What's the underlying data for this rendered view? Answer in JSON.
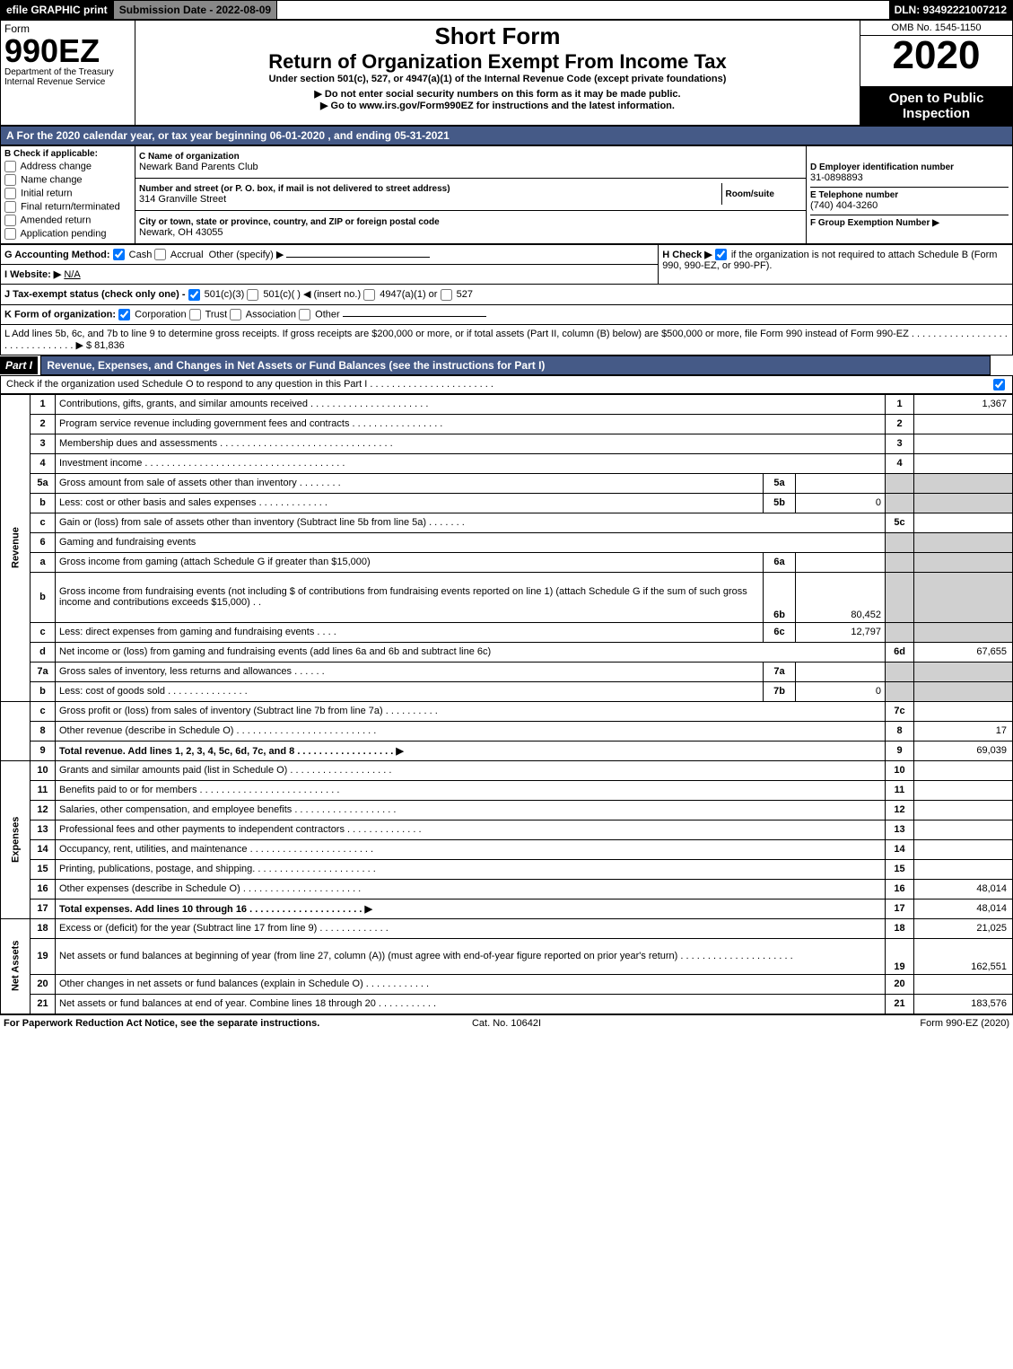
{
  "topbar": {
    "efile": "efile GRAPHIC print",
    "submission": "Submission Date - 2022-08-09",
    "dln": "DLN: 93492221007212"
  },
  "header": {
    "form_word": "Form",
    "form_no": "990EZ",
    "dept": "Department of the Treasury",
    "irs": "Internal Revenue Service",
    "short": "Short Form",
    "title": "Return of Organization Exempt From Income Tax",
    "under": "Under section 501(c), 527, or 4947(a)(1) of the Internal Revenue Code (except private foundations)",
    "warn1": "▶ Do not enter social security numbers on this form as it may be made public.",
    "warn2": "▶ Go to www.irs.gov/Form990EZ for instructions and the latest information.",
    "omb": "OMB No. 1545-1150",
    "year": "2020",
    "open": "Open to Public Inspection"
  },
  "lineA": "A For the 2020 calendar year, or tax year beginning 06-01-2020 , and ending 05-31-2021",
  "boxB": {
    "title": "B Check if applicable:",
    "opts": [
      "Address change",
      "Name change",
      "Initial return",
      "Final return/terminated",
      "Amended return",
      "Application pending"
    ]
  },
  "boxC": {
    "lbl": "C Name of organization",
    "name": "Newark Band Parents Club",
    "street_lbl": "Number and street (or P. O. box, if mail is not delivered to street address)",
    "street": "314 Granville Street",
    "room_lbl": "Room/suite",
    "city_lbl": "City or town, state or province, country, and ZIP or foreign postal code",
    "city": "Newark, OH  43055"
  },
  "boxD": {
    "lbl": "D Employer identification number",
    "val": "31-0898893"
  },
  "boxE": {
    "lbl": "E Telephone number",
    "val": "(740) 404-3260"
  },
  "boxF": {
    "lbl": "F Group Exemption Number  ▶"
  },
  "boxG": {
    "lbl": "G Accounting Method:",
    "cash": "Cash",
    "accrual": "Accrual",
    "other": "Other (specify) ▶"
  },
  "boxH": {
    "lbl": "H Check ▶",
    "txt": "if the organization is not required to attach Schedule B (Form 990, 990-EZ, or 990-PF)."
  },
  "boxI": {
    "lbl": "I Website: ▶",
    "val": "N/A"
  },
  "boxJ": {
    "lbl": "J Tax-exempt status (check only one) -",
    "o1": "501(c)(3)",
    "o2": "501(c)(  ) ◀ (insert no.)",
    "o3": "4947(a)(1) or",
    "o4": "527"
  },
  "boxK": {
    "lbl": "K Form of organization:",
    "o1": "Corporation",
    "o2": "Trust",
    "o3": "Association",
    "o4": "Other"
  },
  "lineL": {
    "txt": "L Add lines 5b, 6c, and 7b to line 9 to determine gross receipts. If gross receipts are $200,000 or more, or if total assets (Part II, column (B) below) are $500,000 or more, file Form 990 instead of Form 990-EZ . . . . . . . . . . . . . . . . . . . . . . . . . . . . . . . ▶",
    "val": "$ 81,836"
  },
  "part1": {
    "bar": "Part I",
    "desc": "Revenue, Expenses, and Changes in Net Assets or Fund Balances (see the instructions for Part I)",
    "checkline": "Check if the organization used Schedule O to respond to any question in this Part I . . . . . . . . . . . . . . . . . . . . . . ."
  },
  "revenue_label": "Revenue",
  "expenses_label": "Expenses",
  "netassets_label": "Net Assets",
  "rows": {
    "r1": {
      "n": "1",
      "t": "Contributions, gifts, grants, and similar amounts received . . . . . . . . . . . . . . . . . . . . . .",
      "rn": "1",
      "v": "1,367"
    },
    "r2": {
      "n": "2",
      "t": "Program service revenue including government fees and contracts . . . . . . . . . . . . . . . . .",
      "rn": "2",
      "v": ""
    },
    "r3": {
      "n": "3",
      "t": "Membership dues and assessments . . . . . . . . . . . . . . . . . . . . . . . . . . . . . . . .",
      "rn": "3",
      "v": ""
    },
    "r4": {
      "n": "4",
      "t": "Investment income . . . . . . . . . . . . . . . . . . . . . . . . . . . . . . . . . . . . .",
      "rn": "4",
      "v": ""
    },
    "r5a": {
      "n": "5a",
      "t": "Gross amount from sale of assets other than inventory . . . . . . . .",
      "sn": "5a",
      "sv": ""
    },
    "r5b": {
      "n": "b",
      "t": "Less: cost or other basis and sales expenses . . . . . . . . . . . . .",
      "sn": "5b",
      "sv": "0"
    },
    "r5c": {
      "n": "c",
      "t": "Gain or (loss) from sale of assets other than inventory (Subtract line 5b from line 5a) . . . . . . .",
      "rn": "5c",
      "v": ""
    },
    "r6": {
      "n": "6",
      "t": "Gaming and fundraising events"
    },
    "r6a": {
      "n": "a",
      "t": "Gross income from gaming (attach Schedule G if greater than $15,000)",
      "sn": "6a",
      "sv": ""
    },
    "r6b": {
      "n": "b",
      "t": "Gross income from fundraising events (not including $                    of contributions from fundraising events reported on line 1) (attach Schedule G if the sum of such gross income and contributions exceeds $15,000)   . .",
      "sn": "6b",
      "sv": "80,452"
    },
    "r6c": {
      "n": "c",
      "t": "Less: direct expenses from gaming and fundraising events   . . . .",
      "sn": "6c",
      "sv": "12,797"
    },
    "r6d": {
      "n": "d",
      "t": "Net income or (loss) from gaming and fundraising events (add lines 6a and 6b and subtract line 6c)",
      "rn": "6d",
      "v": "67,655"
    },
    "r7a": {
      "n": "7a",
      "t": "Gross sales of inventory, less returns and allowances . . . . . .",
      "sn": "7a",
      "sv": ""
    },
    "r7b": {
      "n": "b",
      "t": "Less: cost of goods sold     . . . . . . . . . . . . . . .",
      "sn": "7b",
      "sv": "0"
    },
    "r7c": {
      "n": "c",
      "t": "Gross profit or (loss) from sales of inventory (Subtract line 7b from line 7a) . . . . . . . . . .",
      "rn": "7c",
      "v": ""
    },
    "r8": {
      "n": "8",
      "t": "Other revenue (describe in Schedule O) . . . . . . . . . . . . . . . . . . . . . . . . . .",
      "rn": "8",
      "v": "17"
    },
    "r9": {
      "n": "9",
      "t": "Total revenue. Add lines 1, 2, 3, 4, 5c, 6d, 7c, and 8  . . . . . . . . . . . . . . . . . .   ▶",
      "rn": "9",
      "v": "69,039"
    },
    "r10": {
      "n": "10",
      "t": "Grants and similar amounts paid (list in Schedule O) . . . . . . . . . . . . . . . . . . .",
      "rn": "10",
      "v": ""
    },
    "r11": {
      "n": "11",
      "t": "Benefits paid to or for members    . . . . . . . . . . . . . . . . . . . . . . . . . .",
      "rn": "11",
      "v": ""
    },
    "r12": {
      "n": "12",
      "t": "Salaries, other compensation, and employee benefits . . . . . . . . . . . . . . . . . . .",
      "rn": "12",
      "v": ""
    },
    "r13": {
      "n": "13",
      "t": "Professional fees and other payments to independent contractors . . . . . . . . . . . . . .",
      "rn": "13",
      "v": ""
    },
    "r14": {
      "n": "14",
      "t": "Occupancy, rent, utilities, and maintenance . . . . . . . . . . . . . . . . . . . . . . .",
      "rn": "14",
      "v": ""
    },
    "r15": {
      "n": "15",
      "t": "Printing, publications, postage, and shipping. . . . . . . . . . . . . . . . . . . . . . .",
      "rn": "15",
      "v": ""
    },
    "r16": {
      "n": "16",
      "t": "Other expenses (describe in Schedule O)    . . . . . . . . . . . . . . . . . . . . . .",
      "rn": "16",
      "v": "48,014"
    },
    "r17": {
      "n": "17",
      "t": "Total expenses. Add lines 10 through 16     . . . . . . . . . . . . . . . . . . . . .   ▶",
      "rn": "17",
      "v": "48,014"
    },
    "r18": {
      "n": "18",
      "t": "Excess or (deficit) for the year (Subtract line 17 from line 9)       . . . . . . . . . . . . .",
      "rn": "18",
      "v": "21,025"
    },
    "r19": {
      "n": "19",
      "t": "Net assets or fund balances at beginning of year (from line 27, column (A)) (must agree with end-of-year figure reported on prior year's return) . . . . . . . . . . . . . . . . . . . . .",
      "rn": "19",
      "v": "162,551"
    },
    "r20": {
      "n": "20",
      "t": "Other changes in net assets or fund balances (explain in Schedule O) . . . . . . . . . . . .",
      "rn": "20",
      "v": ""
    },
    "r21": {
      "n": "21",
      "t": "Net assets or fund balances at end of year. Combine lines 18 through 20 . . . . . . . . . . .",
      "rn": "21",
      "v": "183,576"
    }
  },
  "footer": {
    "l": "For Paperwork Reduction Act Notice, see the separate instructions.",
    "c": "Cat. No. 10642I",
    "r": "Form 990-EZ (2020)"
  },
  "colors": {
    "barblue": "#455a87",
    "shade": "#d0d0d0"
  }
}
